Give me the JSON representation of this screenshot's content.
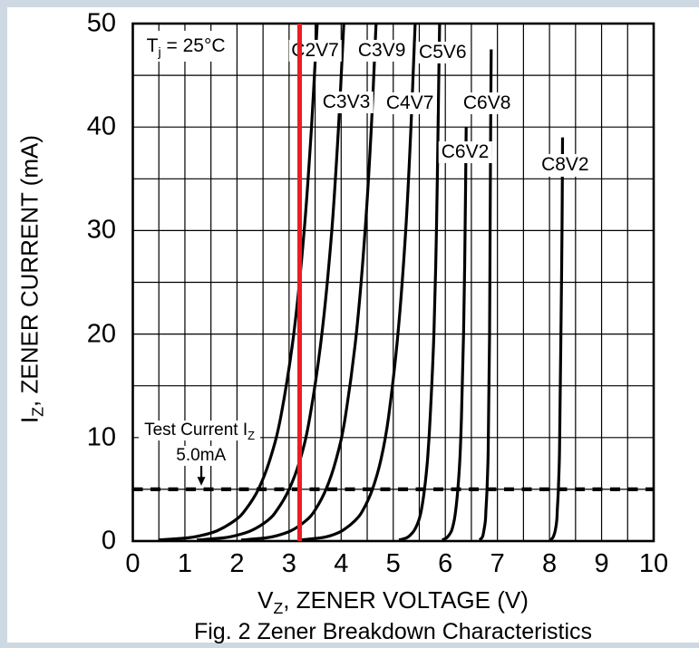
{
  "frame": {
    "color": "#cdd8e3"
  },
  "caption": "Fig. 2  Zener Breakdown Characteristics",
  "colors": {
    "curve": "#000000",
    "grid": "#000000",
    "highlight": "#ed1c24",
    "background": "#ffffff"
  },
  "annotations": {
    "temperature": {
      "pre": "T",
      "sub": "j",
      "post": " = 25°C"
    },
    "test_current_label": {
      "pre": "Test Current I",
      "sub": "Z",
      "post": ""
    },
    "test_current_value": "5.0mA"
  },
  "axes": {
    "x": {
      "title": {
        "pre": "V",
        "sub": "Z",
        "post": ", ZENER VOLTAGE (V)"
      },
      "ticks": [
        "0",
        "1",
        "2",
        "3",
        "4",
        "5",
        "6",
        "7",
        "8",
        "9",
        "10"
      ],
      "min": 0,
      "max": 10,
      "grid_step": 0.5
    },
    "y": {
      "title": {
        "pre": "I",
        "sub": "Z",
        "post": ", ZENER CURRENT (mA)"
      },
      "ticks": [
        "0",
        "10",
        "20",
        "30",
        "40",
        "50"
      ],
      "min": 0,
      "max": 50,
      "grid_step": 5
    }
  },
  "chart_data": {
    "type": "line",
    "title": "Fig. 2  Zener Breakdown Characteristics",
    "xlabel": "VZ, ZENER VOLTAGE (V)",
    "ylabel": "IZ, ZENER CURRENT (mA)",
    "xlim": [
      0,
      10
    ],
    "ylim": [
      0,
      50
    ],
    "grid": true,
    "condition": "Tj = 25°C",
    "test_current_mA": 5.0,
    "highlight_voltage": 3.2,
    "series": [
      {
        "name": "C2V7",
        "label_at": {
          "v": 3.5,
          "i": 47.4
        },
        "points": [
          [
            0.49,
            0.1
          ],
          [
            1.03,
            0.3
          ],
          [
            1.28,
            0.5
          ],
          [
            1.62,
            1
          ],
          [
            1.96,
            2
          ],
          [
            2.16,
            3
          ],
          [
            2.41,
            5
          ],
          [
            2.64,
            8
          ],
          [
            2.84,
            12
          ],
          [
            3.09,
            20
          ],
          [
            3.29,
            30
          ],
          [
            3.43,
            40
          ],
          [
            3.54,
            50
          ]
        ]
      },
      {
        "name": "C3V3",
        "label_at": {
          "v": 4.1,
          "i": 42.4
        },
        "points": [
          [
            1.23,
            0.1
          ],
          [
            1.72,
            0.3
          ],
          [
            1.95,
            0.5
          ],
          [
            2.27,
            1
          ],
          [
            2.59,
            2
          ],
          [
            2.77,
            3
          ],
          [
            3.0,
            5
          ],
          [
            3.22,
            8
          ],
          [
            3.4,
            12
          ],
          [
            3.63,
            20
          ],
          [
            3.82,
            30
          ],
          [
            3.95,
            40
          ],
          [
            4.05,
            50
          ]
        ]
      },
      {
        "name": "C3V9",
        "label_at": {
          "v": 4.78,
          "i": 47.4
        },
        "points": [
          [
            2.08,
            0.1
          ],
          [
            2.54,
            0.3
          ],
          [
            2.75,
            0.5
          ],
          [
            3.04,
            1
          ],
          [
            3.33,
            2
          ],
          [
            3.5,
            3
          ],
          [
            3.71,
            5
          ],
          [
            3.91,
            8
          ],
          [
            4.08,
            12
          ],
          [
            4.29,
            20
          ],
          [
            4.46,
            30
          ],
          [
            4.58,
            40
          ],
          [
            4.67,
            50
          ]
        ]
      },
      {
        "name": "C4V7",
        "label_at": {
          "v": 5.32,
          "i": 42.3
        },
        "points": [
          [
            3.2,
            0.1
          ],
          [
            3.59,
            0.3
          ],
          [
            3.78,
            0.5
          ],
          [
            4.02,
            1
          ],
          [
            4.27,
            2
          ],
          [
            4.42,
            3
          ],
          [
            4.6,
            5
          ],
          [
            4.77,
            8
          ],
          [
            4.91,
            12
          ],
          [
            5.09,
            20
          ],
          [
            5.24,
            30
          ],
          [
            5.34,
            40
          ],
          [
            5.42,
            50
          ]
        ]
      },
      {
        "name": "C5V6",
        "label_at": {
          "v": 5.95,
          "i": 47.2
        },
        "points": [
          [
            5.11,
            0.1
          ],
          [
            5.25,
            0.3
          ],
          [
            5.31,
            0.5
          ],
          [
            5.4,
            1
          ],
          [
            5.49,
            2
          ],
          [
            5.54,
            3
          ],
          [
            5.6,
            5
          ],
          [
            5.66,
            8
          ],
          [
            5.71,
            12
          ],
          [
            5.78,
            20
          ],
          [
            5.83,
            30
          ],
          [
            5.86,
            40
          ],
          [
            5.89,
            50
          ]
        ]
      },
      {
        "name": "C6V2",
        "label_at": {
          "v": 6.38,
          "i": 37.6
        },
        "points": [
          [
            5.94,
            0.1
          ],
          [
            6.02,
            0.3
          ],
          [
            6.06,
            0.5
          ],
          [
            6.12,
            1
          ],
          [
            6.17,
            2
          ],
          [
            6.2,
            3
          ],
          [
            6.24,
            5
          ],
          [
            6.28,
            8
          ],
          [
            6.31,
            12
          ],
          [
            6.35,
            20
          ],
          [
            6.38,
            30
          ],
          [
            6.4,
            40
          ]
        ]
      },
      {
        "name": "C6V8",
        "label_at": {
          "v": 6.8,
          "i": 42.3
        },
        "points": [
          [
            6.66,
            0.1
          ],
          [
            6.7,
            0.3
          ],
          [
            6.72,
            0.5
          ],
          [
            6.74,
            1
          ],
          [
            6.77,
            2
          ],
          [
            6.78,
            3
          ],
          [
            6.8,
            5
          ],
          [
            6.82,
            8
          ],
          [
            6.83,
            12
          ],
          [
            6.85,
            20
          ],
          [
            6.86,
            30
          ],
          [
            6.87,
            40
          ],
          [
            6.88,
            47.5
          ]
        ]
      },
      {
        "name": "C8V2",
        "label_at": {
          "v": 8.3,
          "i": 36.3
        },
        "points": [
          [
            8.02,
            0.1
          ],
          [
            8.06,
            0.3
          ],
          [
            8.08,
            0.5
          ],
          [
            8.11,
            1
          ],
          [
            8.14,
            2
          ],
          [
            8.15,
            3
          ],
          [
            8.17,
            5
          ],
          [
            8.19,
            8
          ],
          [
            8.2,
            12
          ],
          [
            8.22,
            20
          ],
          [
            8.24,
            30
          ],
          [
            8.25,
            39
          ]
        ]
      }
    ]
  }
}
